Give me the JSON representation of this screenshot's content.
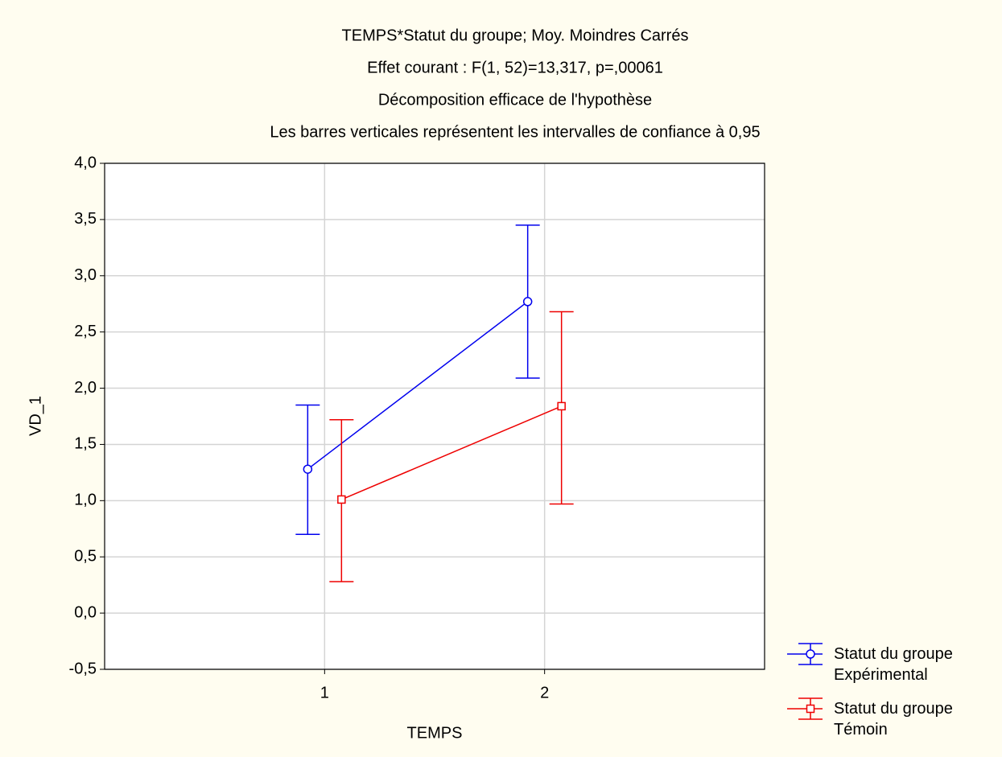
{
  "chart_data": {
    "type": "errorbar-line",
    "title": [
      "TEMPS*Statut du groupe; Moy. Moindres Carrés",
      "Effet courant : F(1, 52)=13,317, p=,00061",
      "Décomposition efficace de l'hypothèse",
      "Les barres verticales représentent les intervalles de confiance à 0,95"
    ],
    "x_label": "TEMPS",
    "y_label": "VD_1",
    "x": [
      1,
      2
    ],
    "xlim": [
      0,
      3
    ],
    "xticks": [
      1,
      2
    ],
    "ylim": [
      -0.5,
      4.0
    ],
    "yticks": [
      {
        "value": -0.5,
        "label": "-0,5"
      },
      {
        "value": 0,
        "label": "0,0"
      },
      {
        "value": 0.5,
        "label": "0,5"
      },
      {
        "value": 1,
        "label": "1,0"
      },
      {
        "value": 1.5,
        "label": "1,5"
      },
      {
        "value": 2,
        "label": "2,0"
      },
      {
        "value": 2.5,
        "label": "2,5"
      },
      {
        "value": 3,
        "label": "3,0"
      },
      {
        "value": 3.5,
        "label": "3,5"
      },
      {
        "value": 4,
        "label": "4,0"
      }
    ],
    "grid": true,
    "series": [
      {
        "name": "Statut du groupe Expérimental",
        "color": "#0000ee",
        "marker": "circle",
        "values": [
          1.28,
          2.77
        ],
        "lower": [
          0.7,
          2.09
        ],
        "upper": [
          1.85,
          3.45
        ]
      },
      {
        "name": "Statut du groupe Témoin",
        "color": "#ee0000",
        "marker": "square",
        "values": [
          1.01,
          1.84
        ],
        "lower": [
          0.28,
          0.97
        ],
        "upper": [
          1.72,
          2.68
        ]
      }
    ]
  }
}
